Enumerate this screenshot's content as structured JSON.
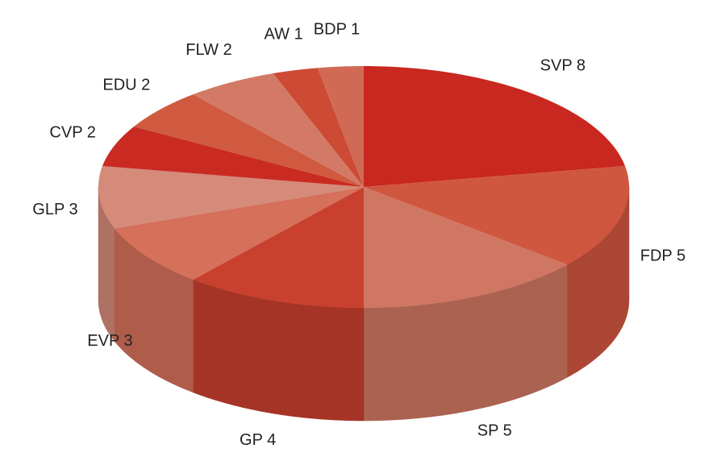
{
  "chart_data": {
    "type": "pie3d",
    "categories": [
      "SVP",
      "FDP",
      "SP",
      "GP",
      "EVP",
      "GLP",
      "CVP",
      "EDU",
      "FLW",
      "AW",
      "BDP"
    ],
    "values": [
      8,
      5,
      5,
      4,
      3,
      3,
      2,
      2,
      2,
      1,
      1
    ],
    "colors": [
      "#c8281f",
      "#d0573f",
      "#d07763",
      "#c9402e",
      "#d5705a",
      "#d58a7a",
      "#c92b22",
      "#d05a40",
      "#d27a66",
      "#cd4a35",
      "#d06a55"
    ]
  }
}
